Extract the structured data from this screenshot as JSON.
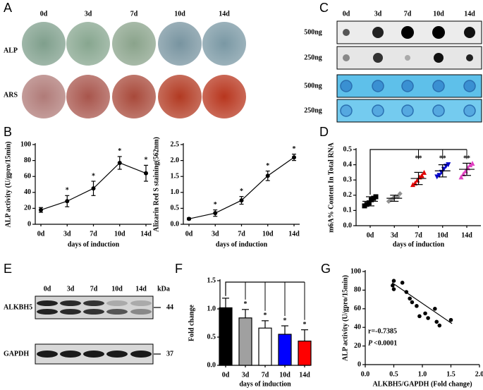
{
  "figure": {
    "panel_labels": [
      "A",
      "B",
      "C",
      "D",
      "E",
      "F",
      "G"
    ],
    "A": {
      "columns": [
        "0d",
        "3d",
        "7d",
        "10d",
        "14d"
      ],
      "rows": [
        "ALP",
        "ARS"
      ]
    },
    "C": {
      "columns": [
        "0d",
        "3d",
        "7d",
        "10d",
        "14d"
      ],
      "rows": [
        "500ng",
        "250ng",
        "500ng",
        "250ng"
      ]
    },
    "E": {
      "columns": [
        "0d",
        "3d",
        "7d",
        "10d",
        "14d"
      ],
      "unit": "kDa",
      "rows": [
        "ALKBH5",
        "GAPDH"
      ],
      "markers": [
        44,
        37
      ]
    }
  },
  "chart_data": [
    {
      "type": "line",
      "ylabel": "ALP activity (U/gpro/15min)",
      "xlabel": "days of induction",
      "categories": [
        "0d",
        "3d",
        "7d",
        "10d",
        "14d"
      ],
      "values": [
        18,
        29,
        45,
        77,
        64
      ],
      "errors": [
        3,
        7,
        9,
        8,
        10
      ],
      "significance": [
        null,
        "*",
        "*",
        "*",
        "*"
      ],
      "color": "#000000",
      "ylim": [
        0,
        100
      ],
      "yticks": [
        0,
        20,
        40,
        60,
        80,
        100
      ]
    },
    {
      "type": "line",
      "ylabel": "Alizarin Red S staining(562nm)",
      "xlabel": "days of induction",
      "categories": [
        "0d",
        "3d",
        "7d",
        "10d",
        "14d"
      ],
      "values": [
        0.17,
        0.35,
        0.75,
        1.52,
        2.1
      ],
      "errors": [
        0.03,
        0.1,
        0.12,
        0.15,
        0.1
      ],
      "significance": [
        null,
        "*",
        "*",
        "*",
        "*"
      ],
      "color": "#000000",
      "ylim": [
        0,
        2.5
      ],
      "yticks": [
        {
          "value": 0,
          "label": "0.0"
        },
        0.5,
        {
          "value": 1,
          "label": "1.0"
        },
        1.5,
        {
          "value": 2,
          "label": "2.0"
        },
        2.5
      ]
    },
    {
      "type": "dot",
      "ylabel": "m6A% Content In Total RNA",
      "xlabel": "days of induction",
      "categories": [
        "0d",
        "3d",
        "7d",
        "10d",
        "14d"
      ],
      "values": [
        0.16,
        0.18,
        0.31,
        0.36,
        0.37
      ],
      "errors": [
        0.03,
        0.02,
        0.04,
        0.04,
        0.04
      ],
      "points": [
        [
          0.13,
          0.14,
          0.15,
          0.17,
          0.18,
          0.19
        ],
        [
          0.16,
          0.17,
          0.18,
          0.19,
          0.19,
          0.21
        ],
        [
          0.27,
          0.28,
          0.3,
          0.32,
          0.33,
          0.35
        ],
        [
          0.32,
          0.33,
          0.35,
          0.37,
          0.39,
          0.4
        ],
        [
          0.32,
          0.34,
          0.36,
          0.38,
          0.4,
          0.41
        ]
      ],
      "colors": [
        "#000000",
        "#909090",
        "#e00000",
        "#0000c8",
        "#e040c0"
      ],
      "markers": [
        "square",
        "diamond",
        "triangle",
        "triangle-down",
        "triangle"
      ],
      "significance": [
        null,
        null,
        "**",
        "**",
        "**"
      ],
      "ylim": [
        0,
        0.5
      ],
      "yticks": [
        {
          "value": 0,
          "label": "0.0"
        },
        0.1,
        0.2,
        0.3,
        0.4,
        0.5
      ]
    },
    {
      "type": "bar",
      "ylabel": "Fold change",
      "xlabel": "days of induction",
      "categories": [
        "0d",
        "3d",
        "7d",
        "10d",
        "14d"
      ],
      "values": [
        1.02,
        0.84,
        0.66,
        0.55,
        0.43
      ],
      "errors": [
        0.17,
        0.15,
        0.13,
        0.15,
        0.2
      ],
      "colors": [
        "#000000",
        "#a0a0a0",
        "#ffffff",
        "#0000ff",
        "#ff0000"
      ],
      "significance": [
        null,
        "*",
        "*",
        "*",
        "*"
      ],
      "ylim": [
        0,
        1.5
      ],
      "yticks": [
        {
          "value": 0,
          "label": "0.0"
        },
        0.5,
        {
          "value": 1,
          "label": "1.0"
        },
        1.5
      ]
    },
    {
      "type": "scatter",
      "ylabel": "ALP activity (U/gpro/15min)",
      "xlabel": "ALKBH5/GAPDH (Fold change)",
      "x": [
        0.5,
        0.48,
        0.5,
        0.65,
        0.72,
        0.78,
        0.82,
        0.9,
        0.95,
        1.05,
        1.1,
        1.22,
        1.25,
        1.3,
        1.5
      ],
      "values": [
        90,
        85,
        81,
        88,
        78,
        71,
        67,
        63,
        52,
        55,
        50,
        60,
        46,
        42,
        48
      ],
      "fit": {
        "x": [
          0.47,
          1.52
        ],
        "values": [
          88,
          44
        ]
      },
      "r_label": "r=-0.7385",
      "p_symbol": "P",
      "p_value": "<0.0001",
      "color": "#000000",
      "xlim": [
        0,
        2
      ],
      "xticks": [
        {
          "value": 0,
          "label": "0.0"
        },
        0.5,
        {
          "value": 1,
          "label": "1.0"
        },
        1.5,
        {
          "value": 2,
          "label": "2.0"
        }
      ],
      "ylim": [
        0,
        100
      ],
      "yticks": [
        0,
        20,
        40,
        60,
        80,
        100
      ]
    }
  ]
}
